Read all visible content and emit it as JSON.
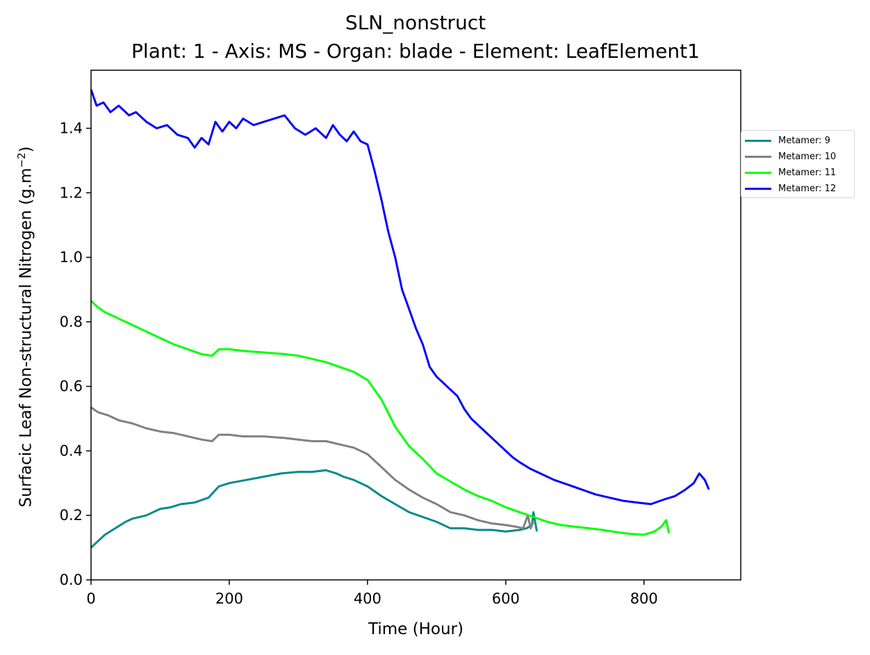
{
  "chart_data": {
    "type": "line",
    "title": "SLN_nonstruct",
    "subtitle": "Plant: 1 - Axis: MS - Organ: blade - Element: LeafElement1",
    "xlabel": "Time (Hour)",
    "ylabel": "Surfacic Leaf Non-structural Nitrogen (g.m",
    "ylabel_sup": "−2",
    "ylabel_end": ")",
    "xlim": [
      0,
      940
    ],
    "ylim": [
      0,
      1.58
    ],
    "xticks": [
      0,
      200,
      400,
      600,
      800
    ],
    "yticks": [
      0.0,
      0.2,
      0.4,
      0.6,
      0.8,
      1.0,
      1.2,
      1.4
    ],
    "grid": false,
    "legend_position": "outside-right",
    "series": [
      {
        "name": "Metamer: 9",
        "color": "#008b8b",
        "x": [
          0,
          10,
          20,
          35,
          50,
          60,
          80,
          100,
          115,
          130,
          150,
          170,
          185,
          200,
          225,
          250,
          275,
          300,
          320,
          340,
          355,
          365,
          380,
          400,
          420,
          440,
          460,
          480,
          500,
          520,
          540,
          560,
          580,
          600,
          620,
          630,
          638,
          640,
          645
        ],
        "y": [
          0.1,
          0.12,
          0.14,
          0.16,
          0.18,
          0.19,
          0.2,
          0.22,
          0.225,
          0.235,
          0.24,
          0.255,
          0.29,
          0.3,
          0.31,
          0.32,
          0.33,
          0.335,
          0.335,
          0.34,
          0.33,
          0.32,
          0.31,
          0.29,
          0.26,
          0.235,
          0.21,
          0.195,
          0.18,
          0.16,
          0.16,
          0.155,
          0.155,
          0.15,
          0.155,
          0.16,
          0.17,
          0.21,
          0.15
        ]
      },
      {
        "name": "Metamer: 10",
        "color": "#808080",
        "x": [
          0,
          10,
          25,
          40,
          60,
          80,
          100,
          120,
          140,
          160,
          175,
          185,
          200,
          220,
          250,
          280,
          300,
          320,
          340,
          360,
          380,
          400,
          420,
          440,
          460,
          480,
          500,
          520,
          540,
          560,
          580,
          600,
          615,
          625,
          632,
          636,
          640
        ],
        "y": [
          0.535,
          0.52,
          0.51,
          0.495,
          0.485,
          0.47,
          0.46,
          0.455,
          0.445,
          0.435,
          0.43,
          0.45,
          0.45,
          0.445,
          0.445,
          0.44,
          0.435,
          0.43,
          0.43,
          0.42,
          0.41,
          0.39,
          0.35,
          0.31,
          0.28,
          0.255,
          0.235,
          0.21,
          0.2,
          0.185,
          0.175,
          0.17,
          0.165,
          0.16,
          0.2,
          0.16,
          0.18
        ]
      },
      {
        "name": "Metamer: 11",
        "color": "#00ff00",
        "x": [
          0,
          10,
          20,
          40,
          60,
          80,
          100,
          120,
          140,
          160,
          175,
          185,
          200,
          220,
          250,
          280,
          300,
          320,
          340,
          360,
          380,
          400,
          420,
          440,
          460,
          480,
          500,
          520,
          540,
          560,
          580,
          600,
          620,
          640,
          660,
          680,
          700,
          720,
          740,
          760,
          780,
          800,
          815,
          825,
          832,
          836
        ],
        "y": [
          0.865,
          0.845,
          0.83,
          0.81,
          0.79,
          0.77,
          0.75,
          0.73,
          0.715,
          0.7,
          0.695,
          0.715,
          0.715,
          0.71,
          0.705,
          0.7,
          0.695,
          0.685,
          0.675,
          0.66,
          0.645,
          0.62,
          0.56,
          0.475,
          0.415,
          0.375,
          0.33,
          0.305,
          0.28,
          0.26,
          0.245,
          0.225,
          0.21,
          0.195,
          0.18,
          0.17,
          0.165,
          0.16,
          0.155,
          0.148,
          0.143,
          0.14,
          0.15,
          0.165,
          0.185,
          0.145
        ]
      },
      {
        "name": "Metamer: 12",
        "color": "#0000ff",
        "x": [
          0,
          8,
          18,
          28,
          40,
          55,
          65,
          80,
          95,
          110,
          125,
          140,
          150,
          160,
          170,
          180,
          190,
          200,
          210,
          220,
          235,
          250,
          265,
          280,
          295,
          310,
          325,
          340,
          350,
          360,
          370,
          380,
          390,
          400,
          410,
          420,
          430,
          440,
          450,
          460,
          470,
          480,
          490,
          500,
          510,
          520,
          530,
          540,
          550,
          560,
          570,
          580,
          590,
          600,
          610,
          620,
          635,
          650,
          670,
          690,
          710,
          730,
          750,
          770,
          790,
          810,
          830,
          845,
          860,
          872,
          880,
          888,
          894
        ],
        "y": [
          1.52,
          1.47,
          1.48,
          1.45,
          1.47,
          1.44,
          1.45,
          1.42,
          1.4,
          1.41,
          1.38,
          1.37,
          1.34,
          1.37,
          1.35,
          1.42,
          1.39,
          1.42,
          1.4,
          1.43,
          1.41,
          1.42,
          1.43,
          1.44,
          1.4,
          1.38,
          1.4,
          1.37,
          1.41,
          1.38,
          1.36,
          1.39,
          1.36,
          1.35,
          1.27,
          1.18,
          1.08,
          1.0,
          0.9,
          0.84,
          0.78,
          0.73,
          0.66,
          0.63,
          0.61,
          0.59,
          0.57,
          0.53,
          0.5,
          0.48,
          0.46,
          0.44,
          0.42,
          0.4,
          0.38,
          0.365,
          0.345,
          0.33,
          0.31,
          0.295,
          0.28,
          0.265,
          0.255,
          0.245,
          0.24,
          0.235,
          0.25,
          0.26,
          0.28,
          0.3,
          0.33,
          0.31,
          0.28
        ]
      }
    ]
  }
}
